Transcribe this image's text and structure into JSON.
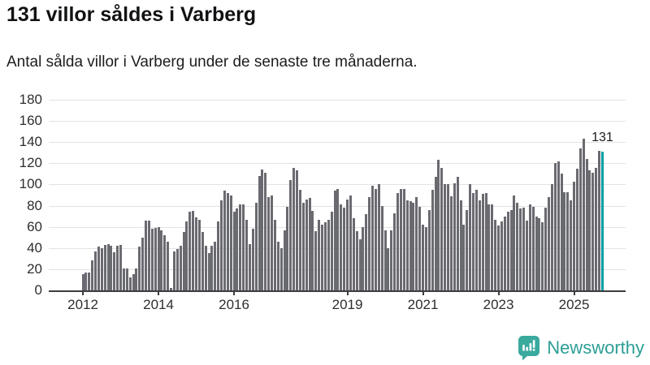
{
  "header": {
    "title": "131 villor såldes i Varberg",
    "subtitle": "Antal sålda villor i Varberg under de senaste tre månaderna."
  },
  "chart_data": {
    "type": "bar",
    "title": "131 villor såldes i Varberg",
    "subtitle": "Antal sålda villor i Varberg under de senaste tre månaderna.",
    "xlabel": "",
    "ylabel": "",
    "ylim": [
      0,
      180
    ],
    "y_ticks": [
      0,
      20,
      40,
      60,
      80,
      100,
      120,
      140,
      160,
      180
    ],
    "x_tick_labels": [
      "2012",
      "2014",
      "2016",
      "2019",
      "2021",
      "2023",
      "2025"
    ],
    "x_domain": {
      "start": "2012-01",
      "end": "2025-10",
      "frequency": "monthly"
    },
    "grid": "horizontal",
    "legend": "none",
    "values": [
      15,
      17,
      17,
      28,
      37,
      41,
      40,
      43,
      44,
      42,
      36,
      42,
      43,
      21,
      21,
      12,
      15,
      21,
      41,
      50,
      66,
      66,
      58,
      59,
      60,
      57,
      52,
      46,
      2,
      37,
      39,
      42,
      55,
      65,
      74,
      75,
      69,
      67,
      55,
      42,
      35,
      42,
      46,
      65,
      85,
      94,
      92,
      90,
      74,
      77,
      81,
      81,
      67,
      44,
      58,
      83,
      108,
      114,
      111,
      88,
      90,
      67,
      46,
      40,
      57,
      79,
      104,
      116,
      113,
      95,
      83,
      86,
      87,
      75,
      56,
      67,
      62,
      64,
      67,
      74,
      94,
      96,
      81,
      78,
      86,
      90,
      68,
      56,
      48,
      60,
      72,
      88,
      99,
      96,
      100,
      80,
      57,
      40,
      57,
      73,
      92,
      96,
      96,
      85,
      84,
      83,
      88,
      79,
      62,
      60,
      76,
      95,
      107,
      123,
      116,
      100,
      100,
      89,
      101,
      107,
      85,
      62,
      76,
      100,
      92,
      95,
      85,
      91,
      92,
      81,
      81,
      67,
      61,
      65,
      70,
      74,
      76,
      90,
      83,
      77,
      78,
      66,
      81,
      79,
      70,
      68,
      64,
      78,
      88,
      100,
      120,
      122,
      110,
      93,
      93,
      85,
      103,
      115,
      134,
      143,
      124,
      113,
      111,
      116,
      132,
      131
    ],
    "highlight": {
      "index": 165,
      "value": 131,
      "label": "131"
    },
    "colors": {
      "bar": "#6a6a71",
      "highlight_bar": "#00a0a3",
      "gridline": "#e3e3e3",
      "axis": "#3d3d3f",
      "text": "#2e2e30"
    }
  },
  "footer": {
    "brand": "Newsworthy",
    "brand_color": "#2d9e96",
    "logo_color": "#3aa99e"
  }
}
